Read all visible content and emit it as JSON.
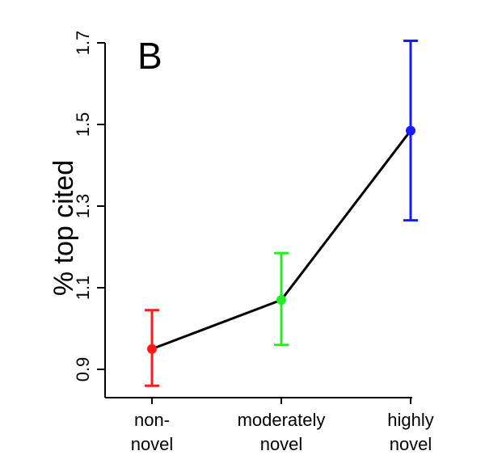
{
  "chart_data": {
    "type": "line",
    "panel_label": "B",
    "ylabel": "% top cited",
    "categories": [
      "non-\nnovel",
      "moderately\nnovel",
      "highly\nnovel"
    ],
    "ylim": [
      0.83,
      1.72
    ],
    "yticks": [
      0.9,
      1.1,
      1.3,
      1.5,
      1.7
    ],
    "series": [
      {
        "values": [
          0.95,
          1.07,
          1.485
        ],
        "error_low": [
          0.86,
          0.96,
          1.265
        ],
        "error_high": [
          1.045,
          1.185,
          1.705
        ],
        "point_colors": [
          "#ff1a1a",
          "#22ee22",
          "#1a1aff"
        ],
        "line_color": "#000000"
      }
    ],
    "grid": false
  }
}
